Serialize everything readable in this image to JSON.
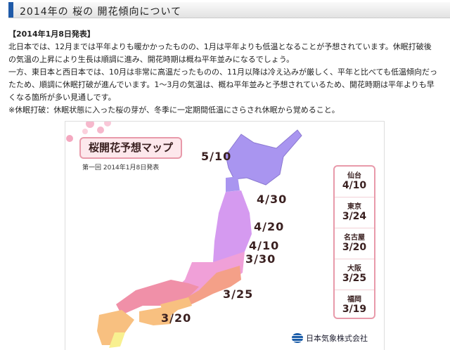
{
  "header": {
    "title": "2014年の 桜の 開花傾向について"
  },
  "article": {
    "date": "【2014年1月8日発表】",
    "paragraphs": [
      "北日本では、12月までは平年よりも暖かかったものの、1月は平年よりも低温となることが予想されています。休眠打破後の気温の上昇により生長は順調に進み、開花時期は概ね平年並みになるでしょう。",
      "一方、東日本と西日本では、10月は非常に高温だったものの、11月以降は冷え込みが厳しく、平年と比べても低温傾向だったため、順調に休眠打破が進んでいます。1〜3月の気温は、概ね平年並みと予想されているため、開花時期は平年よりも早くなる箇所が多い見通しです。",
      "※休眠打破：休眠状態に入った桜の芽が、冬季に一定期間低温にさらされ休眠から覚めること。"
    ]
  },
  "map": {
    "title": "桜開花予想マップ",
    "subtitle": "第一回 2014年1月8日発表",
    "isolines": [
      "5/10",
      "4/30",
      "4/20",
      "4/10",
      "3/30",
      "3/25",
      "3/20"
    ],
    "cities": [
      {
        "name": "仙台",
        "date": "4/10"
      },
      {
        "name": "東京",
        "date": "3/24"
      },
      {
        "name": "名古屋",
        "date": "3/20"
      },
      {
        "name": "大阪",
        "date": "3/25"
      },
      {
        "name": "福岡",
        "date": "3/19"
      }
    ],
    "logo_text": "日本気象株式会社",
    "colors": {
      "purple": "#a995f0",
      "violet": "#d59af0",
      "pink": "#f0a0d8",
      "rose": "#f090a8",
      "salmon": "#f4a088",
      "orange": "#f8c080",
      "yellow": "#f8f090"
    }
  }
}
